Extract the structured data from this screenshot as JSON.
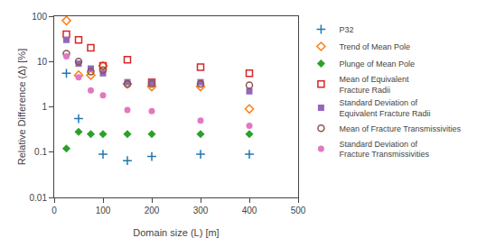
{
  "chart_data": {
    "type": "scatter",
    "xlabel": "Domain size (L) [m]",
    "ylabel": "Relative Difference (Δ) [%]",
    "log": "y",
    "grid": false,
    "legend": "right",
    "xlim": [
      0,
      500
    ],
    "xticks": [
      0,
      100,
      200,
      300,
      400,
      500
    ],
    "ylim": [
      0.01,
      100
    ],
    "yticks": [
      0.01,
      0.1,
      1,
      10,
      100
    ],
    "series": [
      {
        "name": "P32",
        "marker": "cross-thin-open",
        "x": [
          25,
          50,
          100,
          150,
          200,
          300,
          400
        ],
        "values": [
          5.5,
          0.55,
          0.09,
          0.065,
          0.08,
          0.09,
          0.09
        ]
      },
      {
        "name": "Trend of Mean Pole",
        "marker": "diamond-open",
        "x": [
          25,
          50,
          75,
          100,
          150,
          200,
          300,
          400
        ],
        "values": [
          80,
          5.0,
          5.0,
          8.0,
          3.2,
          2.8,
          2.8,
          0.9
        ]
      },
      {
        "name": "Plunge of Mean Pole",
        "marker": "diamond",
        "x": [
          25,
          50,
          75,
          100,
          150,
          200,
          300,
          400
        ],
        "values": [
          0.12,
          0.28,
          0.25,
          0.25,
          0.25,
          0.25,
          0.25,
          0.25
        ]
      },
      {
        "name": "Mean of Equivalent\nFracture Radii",
        "marker": "square-open",
        "x": [
          25,
          50,
          75,
          100,
          150,
          200,
          300,
          400
        ],
        "values": [
          40,
          30,
          20,
          8.0,
          11,
          3.5,
          7.5,
          5.5
        ]
      },
      {
        "name": "Standard Deviation of\nEquivalent Fracture Radii",
        "marker": "square",
        "x": [
          25,
          50,
          75,
          100,
          150,
          200,
          300,
          400
        ],
        "values": [
          30,
          9.0,
          7.0,
          5.5,
          3.5,
          3.5,
          3.5,
          2.2
        ]
      },
      {
        "name": "Mean of Fracture Transmissivities",
        "marker": "circle-open",
        "x": [
          25,
          50,
          75,
          100,
          150,
          200,
          300,
          400
        ],
        "values": [
          15,
          10,
          6.0,
          6.5,
          3.2,
          3.2,
          3.2,
          3.0
        ]
      },
      {
        "name": "Standard Deviation of\nFracture Transmissivities",
        "marker": "circle",
        "x": [
          25,
          50,
          75,
          100,
          150,
          200,
          300,
          400
        ],
        "values": [
          13,
          4.5,
          2.3,
          1.8,
          0.85,
          0.8,
          0.5,
          0.38
        ]
      }
    ]
  }
}
